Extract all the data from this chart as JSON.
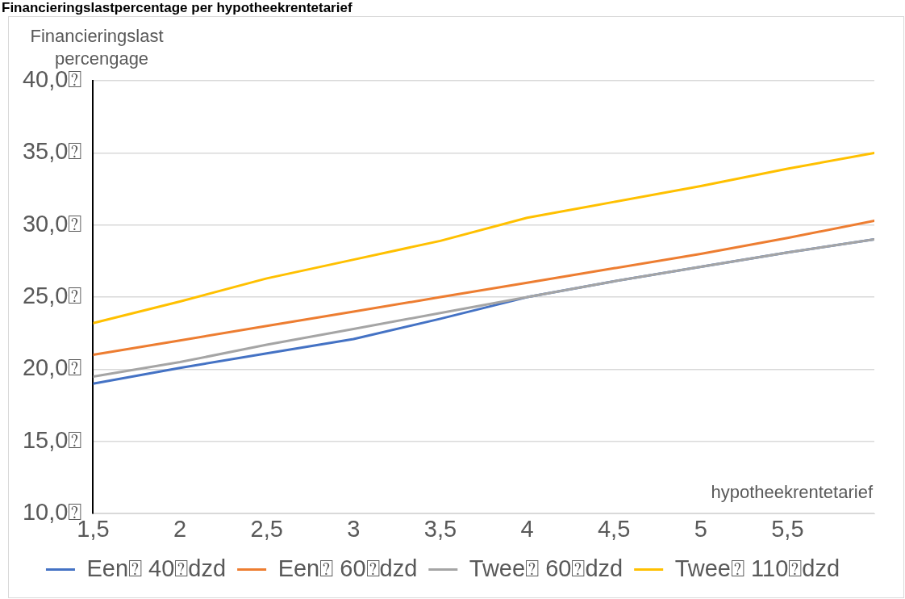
{
  "chart_data": {
    "type": "line",
    "title": "Financieringslastpercentage per hypotheekrentetarief",
    "ylabel": "Financieringslast percengage",
    "xlabel": "hypotheekrentetarief",
    "x": [
      1.5,
      2,
      2.5,
      3,
      3.5,
      4,
      4.5,
      5,
      5.5,
      6
    ],
    "series": [
      {
        "name": "Een⍰ 40⍰dzd",
        "color": "#4472c4",
        "values": [
          19.0,
          20.1,
          21.1,
          22.1,
          23.5,
          25.0,
          26.1,
          27.1,
          28.1,
          29.0
        ]
      },
      {
        "name": "Een⍰ 60⍰dzd",
        "color": "#ed7d31",
        "values": [
          21.0,
          22.0,
          23.0,
          24.0,
          25.0,
          26.0,
          27.0,
          28.0,
          29.1,
          30.3
        ]
      },
      {
        "name": "Twee⍰ 60⍰dzd",
        "color": "#a5a5a5",
        "values": [
          19.5,
          20.5,
          21.7,
          22.8,
          23.9,
          25.0,
          26.1,
          27.1,
          28.1,
          29.0
        ]
      },
      {
        "name": "Twee⍰ 110⍰dzd",
        "color": "#ffc000",
        "values": [
          23.2,
          24.7,
          26.3,
          27.6,
          28.9,
          30.5,
          31.6,
          32.7,
          33.9,
          35.0
        ]
      }
    ],
    "xlim": [
      1.5,
      6
    ],
    "xticks": [
      {
        "value": 1.5,
        "label": "1,5"
      },
      2,
      {
        "value": 2.5,
        "label": "2,5"
      },
      3,
      {
        "value": 3.5,
        "label": "3,5"
      },
      4,
      {
        "value": 4.5,
        "label": "4,5"
      },
      5,
      {
        "value": 5.5,
        "label": "5,5"
      }
    ],
    "ylim": [
      10,
      40
    ],
    "yticks": [
      {
        "value": 10,
        "label": "10,0⍰"
      },
      {
        "value": 15,
        "label": "15,0⍰"
      },
      {
        "value": 20,
        "label": "20,0⍰"
      },
      {
        "value": 25,
        "label": "25,0⍰"
      },
      {
        "value": 30,
        "label": "30,0⍰"
      },
      {
        "value": 35,
        "label": "35,0⍰"
      },
      {
        "value": 40,
        "label": "40,0⍰"
      }
    ],
    "grid": "y",
    "legend": "bottom",
    "marker": "none",
    "line_style": "solid"
  }
}
